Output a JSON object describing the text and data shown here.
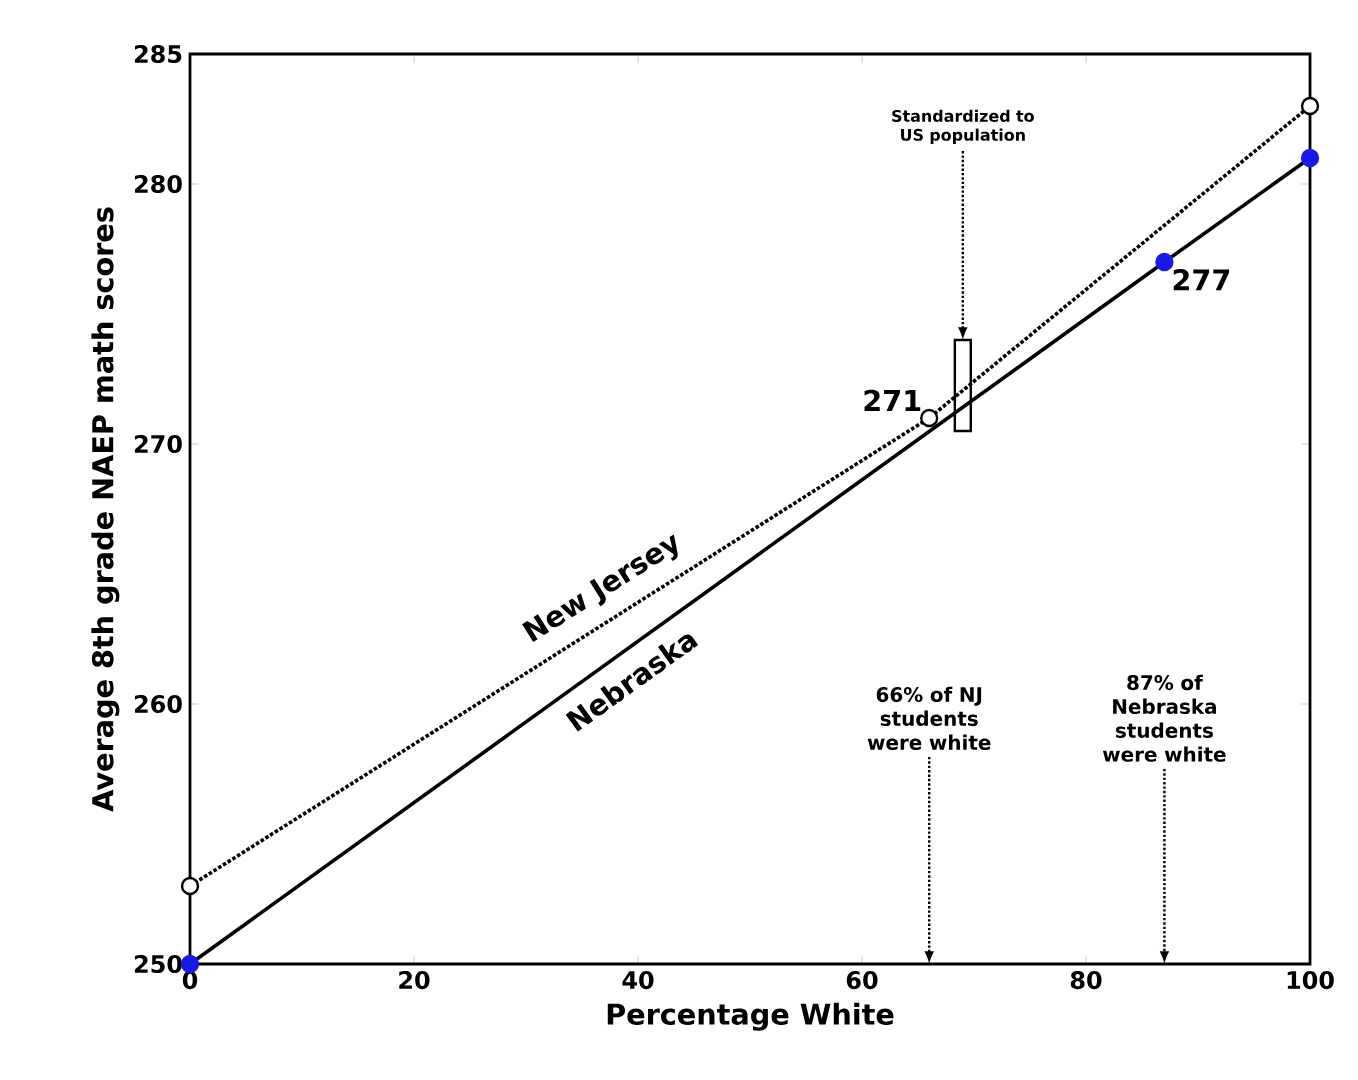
{
  "chart_data": {
    "type": "line",
    "xlabel": "Percentage White",
    "ylabel": "Average 8th grade NAEP math scores",
    "xlim": [
      0,
      100
    ],
    "ylim": [
      250,
      285
    ],
    "xticks": [
      0,
      20,
      40,
      60,
      80,
      100
    ],
    "yticks": [
      250,
      260,
      270,
      280,
      285
    ],
    "series": [
      {
        "name": "New Jersey",
        "color": "#000000",
        "line_style": "dotted",
        "x": [
          0,
          66,
          100
        ],
        "values": [
          253,
          271,
          283
        ],
        "value_labels": [
          null,
          "271",
          null
        ],
        "marker": "circle"
      },
      {
        "type": "bar",
        "color": "#ffffff",
        "x": [
          69
        ],
        "base": [
          270.5
        ],
        "values": [
          3.5
        ]
      },
      {
        "name": "Nebraska",
        "color": "#1a1ae6",
        "line_style": "solid",
        "x": [
          0,
          87,
          100
        ],
        "values": [
          250,
          277,
          281
        ],
        "value_labels": [
          null,
          "277",
          null
        ],
        "marker": "circle"
      }
    ],
    "annotations": [
      {
        "text": "Standardized to US population",
        "x": 69,
        "y": 274
      },
      "66% of NJ students were white",
      "87% of Nebraska students were white"
    ]
  }
}
